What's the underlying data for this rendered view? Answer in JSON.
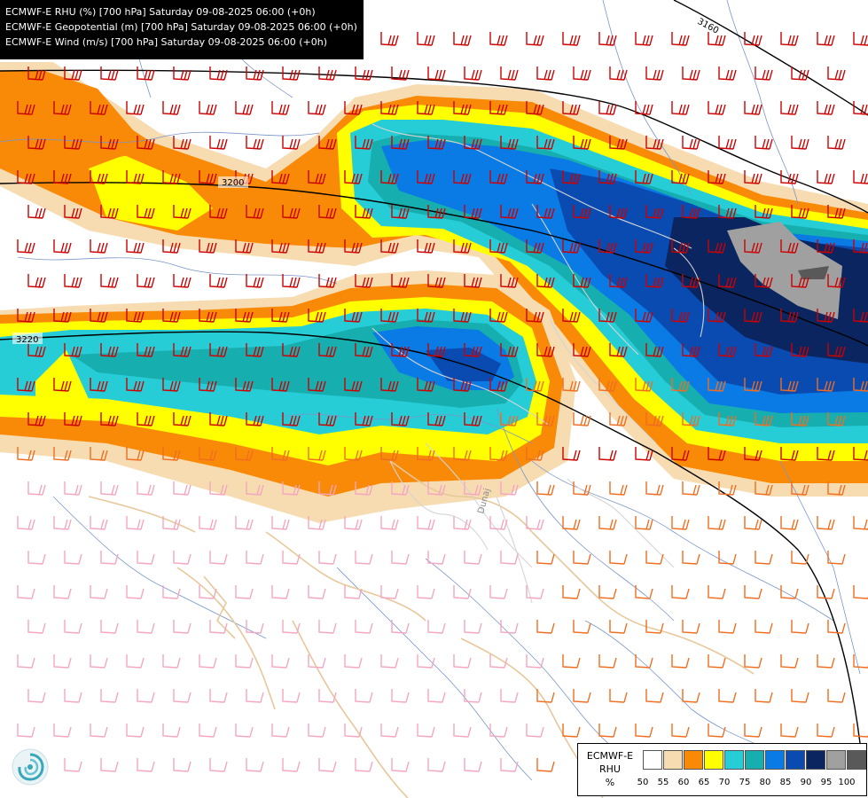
{
  "header": {
    "line1": "ECMWF-E RHU (%) [700 hPa] Saturday 09-08-2025 06:00 (+0h)",
    "line2": "ECMWF-E Geopotential (m) [700 hPa] Saturday 09-08-2025 06:00 (+0h)",
    "line3": "ECMWF-E Wind (m/s) [700 hPa] Saturday 09-08-2025 06:00 (+0h)"
  },
  "contours": {
    "label_3160": "3160",
    "label_3200": "3200",
    "label_3220": "3220"
  },
  "map_labels": {
    "river": "Dunaj"
  },
  "legend": {
    "title_1": "ECMWF-E",
    "title_2": "RHU",
    "unit": "%",
    "levels": [
      "50",
      "55",
      "60",
      "65",
      "70",
      "75",
      "80",
      "85",
      "90",
      "95",
      "100"
    ],
    "colors": [
      "#ffffff",
      "#f7dcb2",
      "#f98a08",
      "#ffff00",
      "#27cdd6",
      "#17aeb0",
      "#0a7ae5",
      "#0a4bb2",
      "#0a2560",
      "#a0a0a0",
      "#595959"
    ]
  },
  "colors": {
    "background": "#ffffff",
    "border_line": "#e7c89b",
    "river": "#7a95c8",
    "contour": "#000000",
    "barb_strong": "#cc0000",
    "barb_medium": "#f06d20",
    "barb_weak": "#f4a5c0"
  },
  "icons": {
    "logo": "swirl-logo-icon"
  }
}
